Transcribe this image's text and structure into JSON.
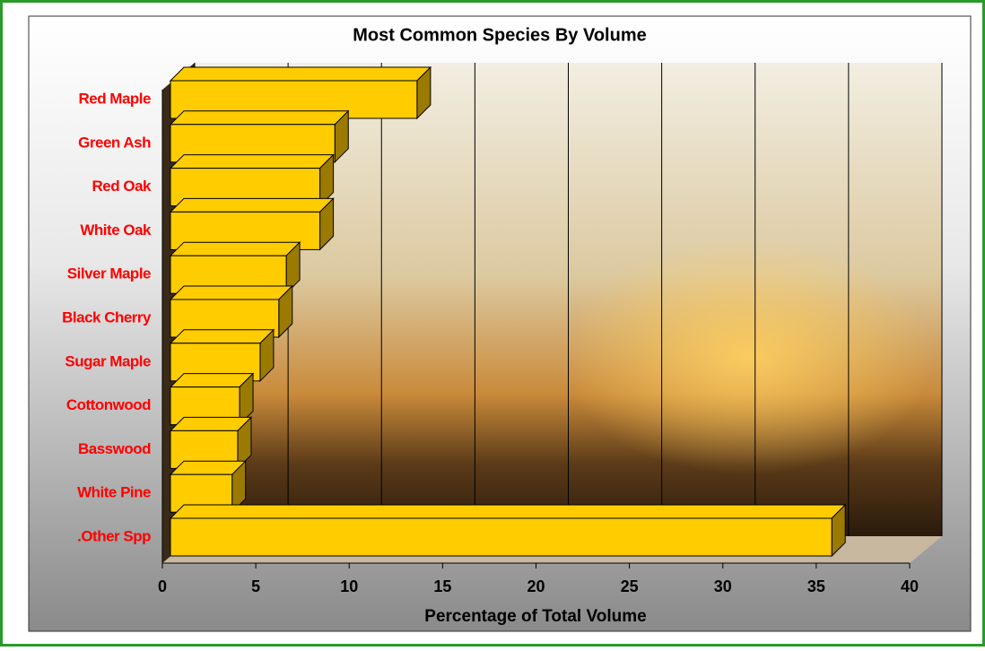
{
  "chart_data": {
    "type": "bar3d_horizontal",
    "title": "Most Common Species By Volume",
    "x_label": "Percentage of Total Volume",
    "categories": [
      "Red Maple",
      "Green Ash",
      "Red Oak",
      "White Oak",
      "Silver Maple",
      "Black Cherry",
      "Sugar Maple",
      "Cottonwood",
      "Basswood",
      "White Pine",
      ".Other Spp"
    ],
    "values": [
      13.2,
      8.8,
      8.0,
      8.0,
      6.2,
      5.8,
      4.8,
      3.7,
      3.6,
      3.3,
      35.4
    ],
    "color": "#ffcc00",
    "xlim": [
      0,
      40
    ],
    "xticks": [
      0,
      5,
      10,
      15,
      20,
      25,
      30,
      35,
      40
    ],
    "grid": true
  }
}
